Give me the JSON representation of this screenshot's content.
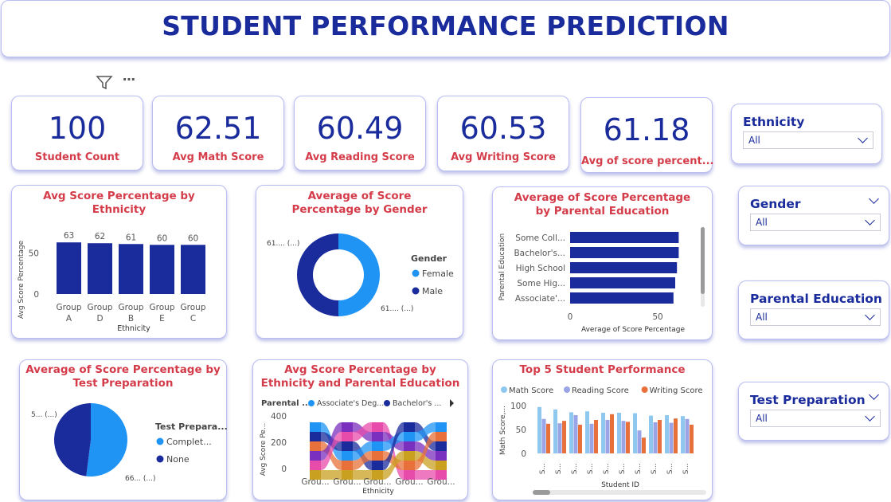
{
  "header": {
    "title": "STUDENT PERFORMANCE PREDICTION"
  },
  "kpis": [
    {
      "value": "100",
      "label": "Student Count"
    },
    {
      "value": "62.51",
      "label": "Avg Math Score"
    },
    {
      "value": "60.49",
      "label": "Avg Reading Score"
    },
    {
      "value": "60.53",
      "label": "Avg Writing Score"
    },
    {
      "value": "61.18",
      "label": "Avg of score percent..."
    }
  ],
  "toolbar": {
    "filter_icon": "filter-icon",
    "more_icon": "more-options-icon",
    "more_label": "⋯"
  },
  "slicers": [
    {
      "title": "Ethnicity",
      "value": "All"
    },
    {
      "title": "Gender",
      "value": "All"
    },
    {
      "title": "Parental Education",
      "value": "All"
    },
    {
      "title": "Test Preparation",
      "value": "All"
    }
  ],
  "colors": {
    "navy": "#1a2b9c",
    "red": "#d43c4a",
    "lightblue": "#1f94f5",
    "math": "#8fc8ef",
    "reading": "#9aa4e6",
    "writing": "#e8703a"
  },
  "chart_data": [
    {
      "type": "bar",
      "title": "Avg Score Percentage by Ethnicity",
      "xlabel": "Ethnicity",
      "ylabel": "Avg Score Percentage",
      "categories": [
        "Group A",
        "Group D",
        "Group B",
        "Group E",
        "Group C"
      ],
      "category_lines": [
        [
          "Group",
          "A"
        ],
        [
          "Group",
          "D"
        ],
        [
          "Group",
          "B"
        ],
        [
          "Group",
          "E"
        ],
        [
          "Group",
          "C"
        ]
      ],
      "values": [
        63,
        62,
        61,
        60,
        60
      ],
      "value_labels": [
        "63",
        "62",
        "61",
        "60",
        "60"
      ],
      "yticks": [
        "0",
        "50"
      ],
      "ylim": [
        0,
        70
      ]
    },
    {
      "type": "pie",
      "title": "Average of Score Percentage by Gender",
      "legend_title": "Gender",
      "labels": [
        "Female",
        "Male"
      ],
      "values": [
        61,
        61
      ],
      "data_labels": [
        "61.... (...)",
        "61.... (...)"
      ]
    },
    {
      "type": "bar",
      "orientation": "horizontal",
      "title": "Average of Score Percentage by Parental Education",
      "xlabel": "Average of Score Percentage",
      "ylabel": "Parental Education",
      "categories": [
        "Some Coll...",
        "Bachelor's...",
        "High School",
        "Some Hig...",
        "Associate'..."
      ],
      "values": [
        62,
        62,
        61,
        60,
        59
      ],
      "xticks": [
        "0",
        "50"
      ],
      "xlim": [
        0,
        75
      ]
    },
    {
      "type": "pie",
      "title": "Average of Score Percentage by Test Preparation",
      "legend_title": "Test Prepara...",
      "labels": [
        "Complet...",
        "None"
      ],
      "values": [
        52,
        48
      ],
      "data_labels": [
        "66... (...)",
        "5... (...)"
      ]
    },
    {
      "type": "area",
      "title": "Avg Score Percentage by Ethnicity and Parental Education",
      "xlabel": "Ethnicity",
      "ylabel": "Avg Score Pe...",
      "legend_title": "Parental ...",
      "legend": [
        "Associate's Deg...",
        "Bachelor's ..."
      ],
      "categories": [
        "Grou...",
        "Grou...",
        "Grou...",
        "Grou...",
        "Grou..."
      ],
      "yticks": [
        "0",
        "200",
        "400"
      ],
      "ylim": [
        0,
        420
      ]
    },
    {
      "type": "bar",
      "title": "Top 5 Student Performance",
      "xlabel": "Student ID",
      "ylabel": "Math Score,...",
      "categories": [
        "S...",
        "S...",
        "S...",
        "S...",
        "S...",
        "S...",
        "S...",
        "S...",
        "S...",
        "S..."
      ],
      "yticks": [
        "0",
        "50",
        "100"
      ],
      "ylim": [
        0,
        100
      ],
      "series": [
        {
          "name": "Math Score",
          "values": [
            97,
            92,
            86,
            88,
            85,
            85,
            84,
            79,
            80,
            78
          ]
        },
        {
          "name": "Reading Score",
          "values": [
            72,
            63,
            80,
            62,
            70,
            68,
            48,
            65,
            64,
            72
          ]
        },
        {
          "name": "Writing Score",
          "values": [
            62,
            68,
            60,
            70,
            82,
            66,
            33,
            70,
            73,
            60
          ]
        }
      ]
    }
  ]
}
